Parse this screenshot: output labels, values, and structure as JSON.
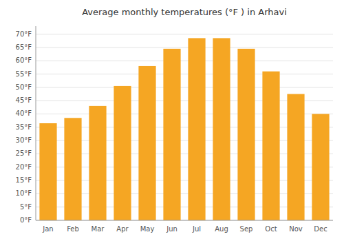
{
  "chart_data": {
    "type": "bar",
    "title": "Average monthly temperatures (°F ) in Arhavi",
    "categories": [
      "Jan",
      "Feb",
      "Mar",
      "Apr",
      "May",
      "Jun",
      "Jul",
      "Aug",
      "Sep",
      "Oct",
      "Nov",
      "Dec"
    ],
    "values": [
      36.5,
      38.5,
      43.0,
      50.5,
      58.0,
      64.5,
      68.5,
      68.5,
      64.5,
      56.0,
      47.5,
      40.0
    ],
    "color": "#F5A623",
    "ylim": [
      0,
      73
    ],
    "yticks": [
      {
        "value": 0,
        "label": "0°F"
      },
      {
        "value": 5,
        "label": "5°F"
      },
      {
        "value": 10,
        "label": "10°F"
      },
      {
        "value": 15,
        "label": "15°F"
      },
      {
        "value": 20,
        "label": "20°F"
      },
      {
        "value": 25,
        "label": "25°F"
      },
      {
        "value": 30,
        "label": "30°F"
      },
      {
        "value": 35,
        "label": "35°F"
      },
      {
        "value": 40,
        "label": "40°F"
      },
      {
        "value": 45,
        "label": "45°F"
      },
      {
        "value": 50,
        "label": "50°F"
      },
      {
        "value": 55,
        "label": "55°F"
      },
      {
        "value": 60,
        "label": "60°F"
      },
      {
        "value": 65,
        "label": "65°F"
      },
      {
        "value": 70,
        "label": "70°F"
      }
    ],
    "grid": true
  }
}
